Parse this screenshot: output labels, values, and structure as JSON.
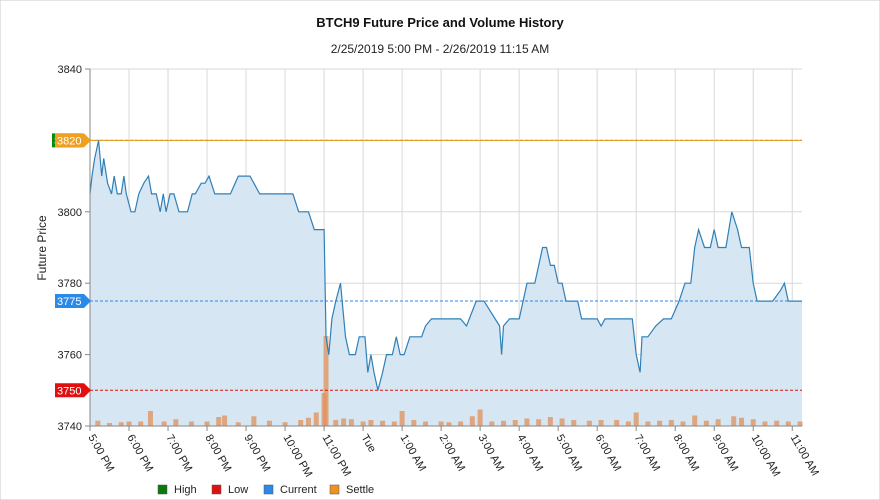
{
  "chart_data": {
    "type": "line",
    "title": "BTCH9 Future Price and Volume History",
    "subtitle": "2/25/2019 5:00 PM - 2/26/2019 11:15 AM",
    "ylabel": "Future Price",
    "xlabel": "",
    "ylim": [
      3740,
      3840
    ],
    "y_ticks": [
      3740,
      3760,
      3780,
      3800,
      3820,
      3840
    ],
    "x_range_hours": [
      17.0,
      35.25
    ],
    "x_tick_labels": [
      "5:00 PM",
      "6:00 PM",
      "7:00 PM",
      "8:00 PM",
      "9:00 PM",
      "10:00 PM",
      "11:00 PM",
      "Tue",
      "1:00 AM",
      "2:00 AM",
      "3:00 AM",
      "4:00 AM",
      "5:00 AM",
      "6:00 AM",
      "7:00 AM",
      "8:00 AM",
      "9:00 AM",
      "10:00 AM",
      "11:00 AM"
    ],
    "grid": true,
    "legend_position": "bottom",
    "reference_lines": [
      {
        "name": "High",
        "value": 3820,
        "color": "#0a8a0a",
        "label": "3820"
      },
      {
        "name": "Settle",
        "value": 3820,
        "color": "#f0a020",
        "label": "3820"
      },
      {
        "name": "Current",
        "value": 3775,
        "color": "#2a8ae8",
        "label": "3775"
      },
      {
        "name": "Low",
        "value": 3750,
        "color": "#e01010",
        "label": "3750"
      }
    ],
    "legend": [
      {
        "name": "High",
        "color": "#0a7a0a"
      },
      {
        "name": "Low",
        "color": "#e01010"
      },
      {
        "name": "Current",
        "color": "#2a8ae8"
      },
      {
        "name": "Settle",
        "color": "#f09020"
      }
    ],
    "price_series": {
      "name": "Price",
      "color": "#2f80b8",
      "fill": "#d6e6f2",
      "points": [
        [
          17.0,
          3805
        ],
        [
          17.05,
          3810
        ],
        [
          17.12,
          3815
        ],
        [
          17.22,
          3820
        ],
        [
          17.3,
          3810
        ],
        [
          17.35,
          3815
        ],
        [
          17.45,
          3808
        ],
        [
          17.55,
          3805
        ],
        [
          17.62,
          3810
        ],
        [
          17.7,
          3805
        ],
        [
          17.8,
          3805
        ],
        [
          17.87,
          3810
        ],
        [
          17.93,
          3805
        ],
        [
          18.05,
          3800
        ],
        [
          18.15,
          3800
        ],
        [
          18.25,
          3805
        ],
        [
          18.38,
          3808
        ],
        [
          18.5,
          3810
        ],
        [
          18.58,
          3805
        ],
        [
          18.7,
          3805
        ],
        [
          18.8,
          3800
        ],
        [
          18.88,
          3805
        ],
        [
          18.95,
          3800
        ],
        [
          19.05,
          3805
        ],
        [
          19.15,
          3805
        ],
        [
          19.28,
          3800
        ],
        [
          19.5,
          3800
        ],
        [
          19.62,
          3805
        ],
        [
          19.7,
          3805
        ],
        [
          19.85,
          3808
        ],
        [
          19.95,
          3808
        ],
        [
          20.05,
          3810
        ],
        [
          20.2,
          3805
        ],
        [
          20.6,
          3805
        ],
        [
          20.8,
          3810
        ],
        [
          21.1,
          3810
        ],
        [
          21.35,
          3805
        ],
        [
          21.6,
          3805
        ],
        [
          22.2,
          3805
        ],
        [
          22.35,
          3800
        ],
        [
          22.6,
          3800
        ],
        [
          22.75,
          3795
        ],
        [
          23.0,
          3795
        ],
        [
          23.05,
          3765
        ],
        [
          23.12,
          3760
        ],
        [
          23.2,
          3770
        ],
        [
          23.3,
          3775
        ],
        [
          23.42,
          3780
        ],
        [
          23.55,
          3765
        ],
        [
          23.65,
          3760
        ],
        [
          23.8,
          3760
        ],
        [
          23.9,
          3765
        ],
        [
          24.05,
          3765
        ],
        [
          24.12,
          3755
        ],
        [
          24.2,
          3760
        ],
        [
          24.28,
          3755
        ],
        [
          24.38,
          3750
        ],
        [
          24.5,
          3755
        ],
        [
          24.6,
          3760
        ],
        [
          24.75,
          3760
        ],
        [
          24.85,
          3765
        ],
        [
          24.95,
          3760
        ],
        [
          25.05,
          3760
        ],
        [
          25.2,
          3765
        ],
        [
          25.5,
          3765
        ],
        [
          25.6,
          3768
        ],
        [
          25.75,
          3770
        ],
        [
          26.0,
          3770
        ],
        [
          26.5,
          3770
        ],
        [
          26.65,
          3768
        ],
        [
          26.9,
          3775
        ],
        [
          27.1,
          3775
        ],
        [
          27.5,
          3768
        ],
        [
          27.55,
          3760
        ],
        [
          27.6,
          3768
        ],
        [
          27.75,
          3770
        ],
        [
          28.0,
          3770
        ],
        [
          28.2,
          3780
        ],
        [
          28.4,
          3780
        ],
        [
          28.5,
          3785
        ],
        [
          28.6,
          3790
        ],
        [
          28.7,
          3790
        ],
        [
          28.8,
          3785
        ],
        [
          28.9,
          3785
        ],
        [
          29.0,
          3780
        ],
        [
          29.1,
          3780
        ],
        [
          29.2,
          3775
        ],
        [
          29.3,
          3775
        ],
        [
          29.5,
          3775
        ],
        [
          29.6,
          3770
        ],
        [
          29.8,
          3770
        ],
        [
          30.0,
          3770
        ],
        [
          30.1,
          3768
        ],
        [
          30.2,
          3770
        ],
        [
          30.4,
          3770
        ],
        [
          30.6,
          3770
        ],
        [
          30.8,
          3770
        ],
        [
          30.9,
          3770
        ],
        [
          31.0,
          3760
        ],
        [
          31.1,
          3755
        ],
        [
          31.15,
          3765
        ],
        [
          31.3,
          3765
        ],
        [
          31.5,
          3768
        ],
        [
          31.7,
          3770
        ],
        [
          31.9,
          3770
        ],
        [
          32.1,
          3775
        ],
        [
          32.25,
          3780
        ],
        [
          32.4,
          3780
        ],
        [
          32.5,
          3790
        ],
        [
          32.6,
          3795
        ],
        [
          32.75,
          3790
        ],
        [
          32.9,
          3790
        ],
        [
          33.0,
          3795
        ],
        [
          33.1,
          3790
        ],
        [
          33.3,
          3790
        ],
        [
          33.45,
          3800
        ],
        [
          33.6,
          3795
        ],
        [
          33.7,
          3790
        ],
        [
          33.9,
          3790
        ],
        [
          34.0,
          3780
        ],
        [
          34.1,
          3775
        ],
        [
          34.3,
          3775
        ],
        [
          34.5,
          3775
        ],
        [
          34.7,
          3778
        ],
        [
          34.8,
          3780
        ],
        [
          34.9,
          3775
        ],
        [
          35.0,
          3775
        ],
        [
          35.25,
          3775
        ]
      ]
    },
    "volume_series": {
      "name": "Volume",
      "color": "#e0905a",
      "points": [
        [
          17.2,
          0.35
        ],
        [
          17.5,
          0.2
        ],
        [
          17.8,
          0.25
        ],
        [
          18.0,
          0.3
        ],
        [
          18.3,
          0.3
        ],
        [
          18.55,
          1.0
        ],
        [
          18.9,
          0.3
        ],
        [
          19.2,
          0.45
        ],
        [
          19.6,
          0.3
        ],
        [
          20.0,
          0.3
        ],
        [
          20.3,
          0.6
        ],
        [
          20.45,
          0.7
        ],
        [
          20.8,
          0.25
        ],
        [
          21.2,
          0.65
        ],
        [
          21.6,
          0.35
        ],
        [
          22.0,
          0.25
        ],
        [
          22.4,
          0.4
        ],
        [
          22.6,
          0.55
        ],
        [
          22.8,
          0.9
        ],
        [
          23.0,
          2.2
        ],
        [
          23.05,
          6.0
        ],
        [
          23.3,
          0.4
        ],
        [
          23.5,
          0.5
        ],
        [
          23.7,
          0.45
        ],
        [
          24.0,
          0.3
        ],
        [
          24.2,
          0.4
        ],
        [
          24.5,
          0.35
        ],
        [
          24.8,
          0.3
        ],
        [
          25.0,
          1.0
        ],
        [
          25.3,
          0.4
        ],
        [
          25.6,
          0.3
        ],
        [
          26.0,
          0.3
        ],
        [
          26.2,
          0.25
        ],
        [
          26.5,
          0.3
        ],
        [
          26.8,
          0.65
        ],
        [
          27.0,
          1.1
        ],
        [
          27.3,
          0.3
        ],
        [
          27.6,
          0.35
        ],
        [
          27.9,
          0.4
        ],
        [
          28.2,
          0.5
        ],
        [
          28.5,
          0.45
        ],
        [
          28.8,
          0.6
        ],
        [
          29.1,
          0.5
        ],
        [
          29.4,
          0.4
        ],
        [
          29.8,
          0.35
        ],
        [
          30.1,
          0.4
        ],
        [
          30.5,
          0.4
        ],
        [
          30.8,
          0.3
        ],
        [
          31.0,
          0.9
        ],
        [
          31.3,
          0.3
        ],
        [
          31.6,
          0.35
        ],
        [
          31.9,
          0.4
        ],
        [
          32.2,
          0.3
        ],
        [
          32.5,
          0.7
        ],
        [
          32.8,
          0.35
        ],
        [
          33.1,
          0.45
        ],
        [
          33.5,
          0.65
        ],
        [
          33.7,
          0.55
        ],
        [
          34.0,
          0.45
        ],
        [
          34.3,
          0.3
        ],
        [
          34.6,
          0.35
        ],
        [
          34.9,
          0.3
        ],
        [
          35.2,
          0.3
        ]
      ]
    }
  }
}
